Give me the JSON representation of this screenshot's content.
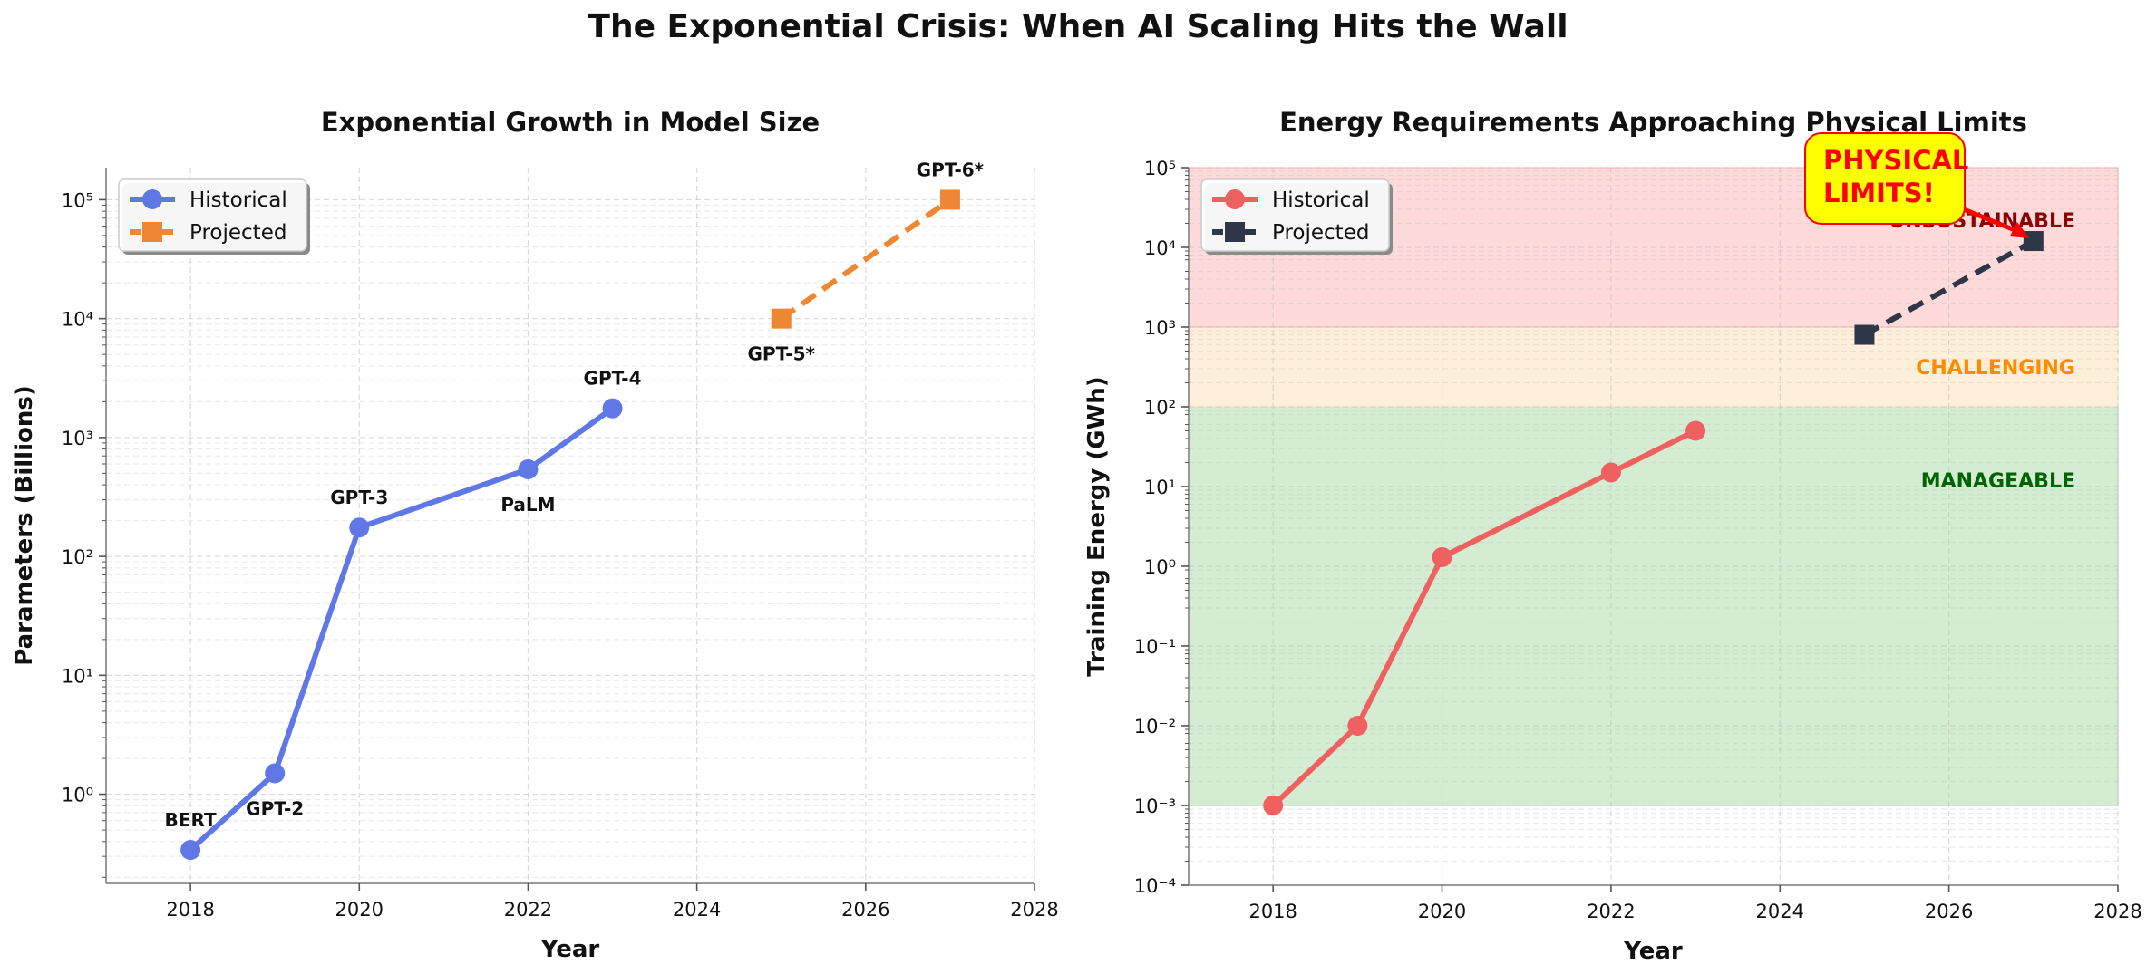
{
  "figure": {
    "suptitle": "The Exponential Crisis: When AI Scaling Hits the Wall"
  },
  "chart_data": [
    {
      "type": "line",
      "title": "Exponential Growth in Model Size",
      "xlabel": "Year",
      "ylabel": "Parameters (Billions)",
      "xlim": [
        2017,
        2028
      ],
      "ylim_log10": [
        -0.75,
        5.27
      ],
      "yscale": "log",
      "x_ticks": [
        2018,
        2020,
        2022,
        2024,
        2026,
        2028
      ],
      "y_tick_exponents": [
        0,
        1,
        2,
        3,
        4,
        5
      ],
      "grid": true,
      "legend_position": "upper-left",
      "series": [
        {
          "name": "Historical",
          "color": "#6078e6",
          "style": "solid",
          "marker": "circle",
          "points": [
            {
              "x": 2018,
              "y": 0.34,
              "label": "BERT",
              "label_pos": "above"
            },
            {
              "x": 2019,
              "y": 1.5,
              "label": "GPT-2",
              "label_pos": "below"
            },
            {
              "x": 2020,
              "y": 175,
              "label": "GPT-3",
              "label_pos": "above"
            },
            {
              "x": 2022,
              "y": 540,
              "label": "PaLM",
              "label_pos": "below"
            },
            {
              "x": 2023,
              "y": 1760,
              "label": "GPT-4",
              "label_pos": "above"
            }
          ]
        },
        {
          "name": "Projected",
          "color": "#ee8733",
          "style": "dashed",
          "marker": "square",
          "points": [
            {
              "x": 2025,
              "y": 10000,
              "label": "GPT-5*",
              "label_pos": "below"
            },
            {
              "x": 2027,
              "y": 100000,
              "label": "GPT-6*",
              "label_pos": "above"
            }
          ]
        }
      ]
    },
    {
      "type": "line",
      "title": "Energy Requirements Approaching Physical Limits",
      "xlabel": "Year",
      "ylabel": "Training Energy (GWh)",
      "xlim": [
        2017,
        2028
      ],
      "ylim_log10": [
        -4,
        5
      ],
      "yscale": "log",
      "x_ticks": [
        2018,
        2020,
        2022,
        2024,
        2026,
        2028
      ],
      "y_tick_exponents": [
        -4,
        -3,
        -2,
        -1,
        0,
        1,
        2,
        3,
        4,
        5
      ],
      "grid": true,
      "legend_position": "upper-left",
      "zones": [
        {
          "label": "MANAGEABLE",
          "from": 0.001,
          "to": 100,
          "fill": "#9fd49a",
          "text_color": "#006400"
        },
        {
          "label": "CHALLENGING",
          "from": 100,
          "to": 1000,
          "fill": "#fddcac",
          "text_color": "#ff8c00"
        },
        {
          "label": "UNSUSTAINABLE",
          "from": 1000,
          "to": 100000,
          "fill": "#fcaeae",
          "text_color": "#8b0000"
        }
      ],
      "series": [
        {
          "name": "Historical",
          "color": "#ef6161",
          "style": "solid",
          "marker": "circle",
          "points": [
            {
              "x": 2018,
              "y": 0.001
            },
            {
              "x": 2019,
              "y": 0.01
            },
            {
              "x": 2020,
              "y": 1.3
            },
            {
              "x": 2022,
              "y": 15
            },
            {
              "x": 2023,
              "y": 50
            }
          ]
        },
        {
          "name": "Projected",
          "color": "#2d3748",
          "style": "dashed",
          "marker": "square",
          "points": [
            {
              "x": 2025,
              "y": 800
            },
            {
              "x": 2027,
              "y": 12000
            }
          ]
        }
      ],
      "annotation": {
        "text_line1": "PHYSICAL",
        "text_line2": "LIMITS!",
        "box_color": "#ffff00",
        "text_color": "#ff0000",
        "arrow_target": {
          "x": 2027,
          "y": 12000
        }
      }
    }
  ]
}
